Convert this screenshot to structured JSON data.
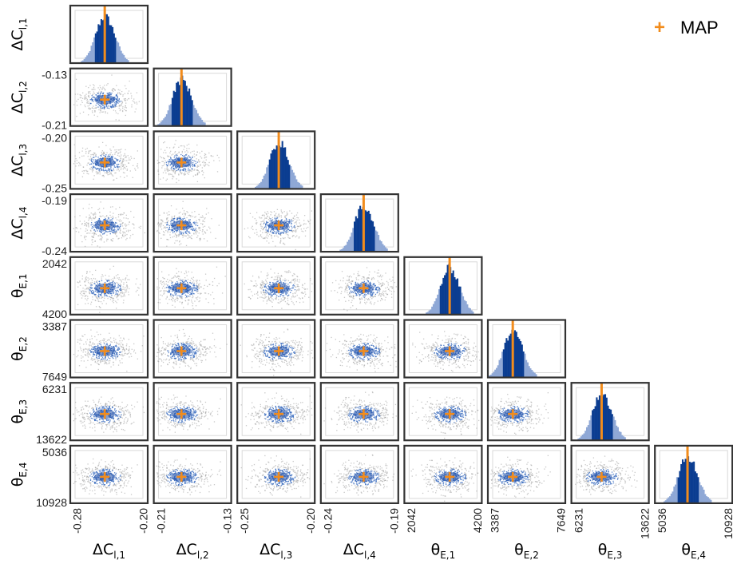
{
  "chart_data": {
    "type": "corner",
    "parameters": [
      {
        "base": "ΔC",
        "sub": "l,1",
        "ticks": [
          "-0.28",
          "-0.20"
        ],
        "range": [
          -0.28,
          -0.2
        ],
        "map": -0.245
      },
      {
        "base": "ΔC",
        "sub": "l,2",
        "ticks": [
          "-0.21",
          "-0.13"
        ],
        "range": [
          -0.21,
          -0.13
        ],
        "map": -0.183
      },
      {
        "base": "ΔC",
        "sub": "l,3",
        "ticks": [
          "-0.25",
          "-0.20"
        ],
        "range": [
          -0.25,
          -0.2
        ],
        "map": -0.223
      },
      {
        "base": "ΔC",
        "sub": "l,4",
        "ticks": [
          "-0.24",
          "-0.19"
        ],
        "range": [
          -0.24,
          -0.19
        ],
        "map": -0.212
      },
      {
        "base": "θ",
        "sub": "E,1",
        "ticks": [
          "2042",
          "4200"
        ],
        "range": [
          2042,
          4200
        ],
        "map": 3330
      },
      {
        "base": "θ",
        "sub": "E,2",
        "ticks": [
          "3387",
          "7649"
        ],
        "range": [
          3387,
          7649
        ],
        "map": 4650
      },
      {
        "base": "θ",
        "sub": "E,3",
        "ticks": [
          "6231",
          "13622"
        ],
        "range": [
          6231,
          13622
        ],
        "map": 9000
      },
      {
        "base": "θ",
        "sub": "E,4",
        "ticks": [
          "5036",
          "10928"
        ],
        "range": [
          5036,
          10928
        ],
        "map": 7450
      }
    ],
    "legend": {
      "label": "MAP",
      "marker": "+",
      "position": "top-right"
    },
    "colors": {
      "hist_dark": "#0b3d91",
      "hist_light": "#8fa8d6",
      "map": "#f28c1c",
      "frame": "#333333",
      "scatter_grey": "#9a9a9a",
      "scatter_blue": "#3d6fc0"
    }
  }
}
